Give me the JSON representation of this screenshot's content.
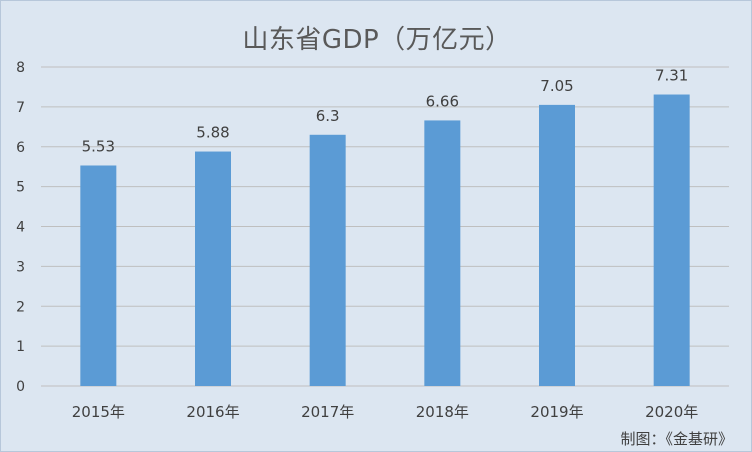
{
  "chart_data": {
    "type": "bar",
    "title": "山东省GDP（万亿元）",
    "categories": [
      "2015年",
      "2016年",
      "2017年",
      "2018年",
      "2019年",
      "2020年"
    ],
    "values": [
      5.53,
      5.88,
      6.3,
      6.66,
      7.05,
      7.31
    ],
    "data_labels": [
      "5.53",
      "5.88",
      "6.3",
      "6.66",
      "7.05",
      "7.31"
    ],
    "xlabel": "",
    "ylabel": "",
    "ylim": [
      0,
      8
    ],
    "yticks": [
      0,
      1,
      2,
      3,
      4,
      5,
      6,
      7,
      8
    ],
    "grid": true,
    "legend": "none",
    "bar_color": "#5b9bd5",
    "grid_color": "#bfbfbf",
    "background_color": "#dce6f1",
    "label_color": "#404040"
  },
  "source_note": "制图：《金基研》"
}
